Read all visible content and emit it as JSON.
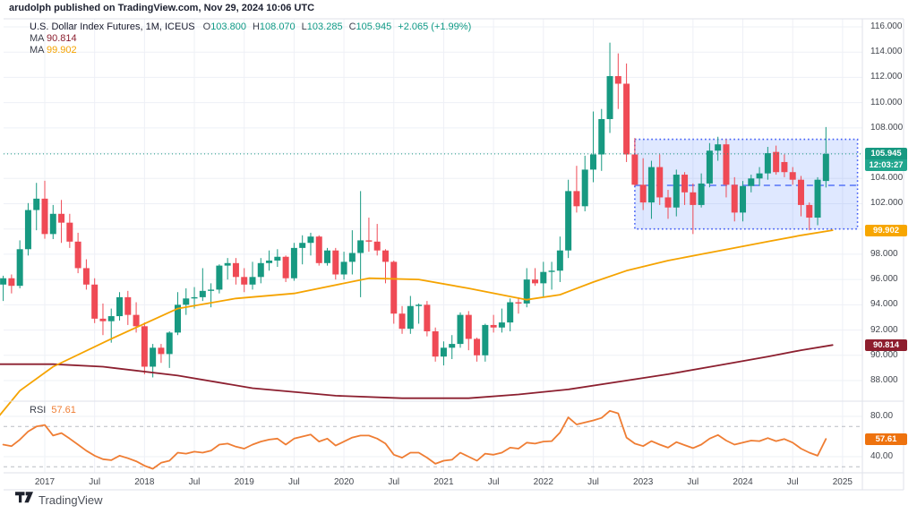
{
  "attribution": "arudolph published on TradingView.com, Nov 29, 2024 10:06 UTC",
  "legend": {
    "title": "U.S. Dollar Index Futures, 1M, ICEUS",
    "ohlc": {
      "o_label": "O",
      "o": "103.800",
      "h_label": "H",
      "h": "108.070",
      "l_label": "L",
      "l": "103.285",
      "c_label": "C",
      "c": "105.945",
      "change": "+2.065 (+1.99%)"
    },
    "ma1": {
      "label": "MA",
      "value": "90.814"
    },
    "ma2": {
      "label": "MA",
      "value": "99.902"
    }
  },
  "rsi_pane": {
    "label": "RSI",
    "value": "57.61"
  },
  "badges": {
    "last_price": "105.945",
    "countdown": "12:03:27",
    "ma_orange": "99.902",
    "ma_maroon": "90.814",
    "rsi": "57.61"
  },
  "footer": {
    "logo_text": "TradingView"
  },
  "chart_data": {
    "type": "candlestick",
    "title": "U.S. Dollar Index Futures, 1M, ICEUS",
    "interval": "1M",
    "start_month": "2016-08",
    "end_month": "2024-11",
    "last_price": 105.945,
    "colors": {
      "up": "#179981",
      "down": "#ef4a55",
      "ma_orange": "#f5a300",
      "ma_maroon": "#8c1f2f",
      "rsi": "#ef7d33",
      "box_fill": "#2962ff",
      "box_border": "#3f5bf6",
      "box_mid": "#5674f8",
      "grid": "#eef0f6",
      "frame": "#dfe2ea",
      "rsi_band": "#b2b5bd"
    },
    "candles": [
      [
        95.6,
        96.3,
        94.3,
        96.1
      ],
      [
        96.1,
        96.4,
        94.9,
        95.5
      ],
      [
        95.5,
        99.1,
        95.3,
        98.4
      ],
      [
        98.4,
        102.05,
        97.9,
        101.5
      ],
      [
        101.5,
        103.65,
        99.9,
        102.4
      ],
      [
        102.4,
        103.82,
        99.23,
        99.6
      ],
      [
        99.6,
        101.9,
        99.2,
        101.2
      ],
      [
        101.2,
        102.3,
        98.9,
        100.5
      ],
      [
        100.5,
        101.2,
        98.5,
        99.0
      ],
      [
        99.0,
        99.7,
        96.5,
        96.9
      ],
      [
        96.9,
        97.6,
        95.2,
        95.6
      ],
      [
        95.6,
        96.1,
        92.55,
        92.9
      ],
      [
        92.9,
        94.1,
        91.6,
        92.7
      ],
      [
        92.7,
        93.7,
        91.0,
        93.1
      ],
      [
        93.1,
        95.0,
        92.75,
        94.6
      ],
      [
        94.6,
        95.1,
        92.4,
        93.2
      ],
      [
        93.2,
        94.2,
        91.8,
        92.3
      ],
      [
        92.3,
        92.6,
        88.5,
        89.1
      ],
      [
        89.1,
        90.9,
        88.25,
        90.6
      ],
      [
        90.6,
        90.9,
        89.4,
        90.1
      ],
      [
        90.1,
        91.9,
        89.0,
        91.8
      ],
      [
        91.8,
        95.0,
        91.6,
        94.0
      ],
      [
        94.0,
        95.3,
        93.2,
        94.5
      ],
      [
        94.5,
        95.4,
        93.7,
        94.6
      ],
      [
        94.6,
        96.9,
        94.3,
        95.1
      ],
      [
        95.1,
        95.7,
        93.8,
        95.2
      ],
      [
        95.2,
        97.2,
        94.9,
        97.1
      ],
      [
        97.1,
        97.7,
        96.0,
        97.3
      ],
      [
        97.3,
        97.7,
        95.6,
        96.2
      ],
      [
        96.2,
        96.9,
        95.0,
        95.6
      ],
      [
        95.6,
        97.4,
        95.2,
        96.2
      ],
      [
        96.2,
        97.7,
        95.7,
        97.3
      ],
      [
        97.3,
        98.3,
        96.7,
        97.5
      ],
      [
        97.5,
        98.4,
        97.0,
        97.8
      ],
      [
        97.8,
        97.9,
        95.8,
        96.1
      ],
      [
        96.1,
        98.9,
        95.9,
        98.5
      ],
      [
        98.5,
        99.5,
        97.2,
        98.9
      ],
      [
        98.9,
        99.7,
        97.9,
        99.4
      ],
      [
        99.4,
        99.5,
        97.1,
        97.3
      ],
      [
        97.3,
        98.5,
        97.1,
        98.3
      ],
      [
        98.3,
        98.5,
        96.0,
        96.4
      ],
      [
        96.4,
        98.2,
        96.0,
        97.4
      ],
      [
        97.4,
        99.9,
        96.4,
        98.1
      ],
      [
        98.1,
        103.0,
        94.6,
        99.1
      ],
      [
        99.1,
        100.9,
        98.2,
        99.0
      ],
      [
        99.0,
        100.4,
        97.9,
        98.3
      ],
      [
        98.3,
        98.4,
        95.7,
        97.4
      ],
      [
        97.4,
        97.5,
        92.5,
        93.3
      ],
      [
        93.3,
        93.9,
        91.7,
        92.1
      ],
      [
        92.1,
        94.7,
        91.7,
        93.9
      ],
      [
        93.9,
        94.1,
        92.5,
        94.0
      ],
      [
        94.0,
        94.3,
        91.5,
        91.9
      ],
      [
        91.9,
        92.2,
        89.5,
        89.9
      ],
      [
        89.9,
        91.1,
        89.2,
        90.6
      ],
      [
        90.6,
        91.6,
        89.7,
        90.9
      ],
      [
        90.9,
        93.4,
        90.6,
        93.2
      ],
      [
        93.2,
        93.5,
        90.4,
        91.3
      ],
      [
        91.3,
        91.4,
        89.5,
        90.0
      ],
      [
        90.0,
        92.5,
        89.5,
        92.4
      ],
      [
        92.4,
        93.2,
        91.8,
        92.2
      ],
      [
        92.2,
        93.7,
        91.8,
        92.6
      ],
      [
        92.6,
        94.5,
        91.9,
        94.2
      ],
      [
        94.2,
        94.6,
        93.3,
        94.1
      ],
      [
        94.1,
        96.9,
        93.8,
        96.0
      ],
      [
        96.0,
        96.9,
        95.5,
        95.7
      ],
      [
        95.7,
        97.4,
        94.6,
        96.6
      ],
      [
        96.6,
        97.4,
        95.2,
        96.7
      ],
      [
        96.7,
        99.4,
        95.8,
        98.3
      ],
      [
        98.3,
        103.9,
        97.7,
        103.0
      ],
      [
        103.0,
        105.0,
        101.3,
        101.8
      ],
      [
        101.8,
        105.8,
        101.4,
        104.7
      ],
      [
        104.7,
        109.3,
        103.7,
        105.9
      ],
      [
        105.9,
        109.5,
        104.6,
        108.7
      ],
      [
        108.7,
        114.75,
        107.6,
        112.1
      ],
      [
        112.1,
        113.9,
        109.5,
        111.5
      ],
      [
        111.5,
        113.1,
        105.3,
        105.9
      ],
      [
        105.9,
        107.2,
        103.4,
        103.5
      ],
      [
        103.5,
        105.6,
        101.5,
        102.1
      ],
      [
        102.1,
        105.4,
        100.8,
        104.9
      ],
      [
        104.9,
        105.9,
        101.9,
        102.5
      ],
      [
        102.5,
        103.1,
        100.8,
        101.7
      ],
      [
        101.7,
        104.7,
        101.0,
        104.3
      ],
      [
        104.3,
        104.5,
        101.9,
        102.9
      ],
      [
        102.9,
        103.6,
        99.6,
        101.9
      ],
      [
        101.9,
        104.4,
        101.7,
        103.6
      ],
      [
        103.6,
        106.8,
        103.3,
        106.2
      ],
      [
        106.2,
        107.3,
        105.4,
        106.7
      ],
      [
        106.7,
        107.1,
        102.5,
        103.5
      ],
      [
        103.5,
        104.1,
        100.6,
        101.3
      ],
      [
        101.3,
        103.8,
        100.6,
        103.4
      ],
      [
        103.4,
        104.3,
        102.9,
        104.0
      ],
      [
        104.0,
        104.9,
        103.4,
        104.4
      ],
      [
        104.4,
        106.5,
        103.9,
        106.0
      ],
      [
        106.1,
        106.6,
        104.3,
        104.5
      ],
      [
        105.3,
        105.9,
        104.1,
        104.5
      ],
      [
        104.5,
        104.9,
        103.5,
        103.9
      ],
      [
        103.9,
        104.2,
        101.0,
        101.9
      ],
      [
        101.9,
        102.1,
        99.9,
        100.9
      ],
      [
        100.9,
        104.1,
        100.3,
        103.9
      ],
      [
        103.8,
        108.07,
        103.285,
        105.945
      ]
    ],
    "rsi": [
      52,
      50.5,
      57,
      65,
      70,
      71.5,
      61,
      63.5,
      58,
      52,
      46,
      41,
      37.5,
      36.5,
      41,
      38.5,
      35.5,
      31,
      28,
      34,
      36,
      44,
      43,
      45,
      44,
      46,
      52,
      53,
      50,
      48,
      52,
      55,
      57,
      58,
      52,
      58,
      60,
      62,
      55,
      58,
      51,
      55,
      59,
      61,
      61,
      58,
      53,
      42,
      39,
      44,
      44,
      39,
      33,
      36,
      37,
      44,
      40,
      36,
      43,
      42,
      44,
      49,
      48,
      54,
      53,
      55,
      55.5,
      64,
      79,
      72,
      74,
      76,
      78.5,
      85.5,
      83,
      59,
      53,
      50.5,
      55.5,
      52,
      49,
      54.5,
      51.5,
      48.5,
      52,
      58,
      61.5,
      56,
      52,
      54,
      56,
      55.5,
      58.5,
      55.5,
      57.5,
      54,
      48,
      44,
      41,
      57.61
    ],
    "ma_orange": [
      [
        -0.5,
        85.2
      ],
      [
        2,
        87.2
      ],
      [
        6,
        89.1
      ],
      [
        13,
        91.3
      ],
      [
        21,
        93.7
      ],
      [
        28,
        94.5
      ],
      [
        35,
        94.9
      ],
      [
        44,
        96.1
      ],
      [
        50,
        96.0
      ],
      [
        56,
        95.3
      ],
      [
        63,
        94.4
      ],
      [
        67,
        94.8
      ],
      [
        71,
        95.8
      ],
      [
        75,
        96.7
      ],
      [
        80,
        97.5
      ],
      [
        84,
        98.0
      ],
      [
        88,
        98.5
      ],
      [
        92,
        99.0
      ],
      [
        96,
        99.5
      ],
      [
        99.8,
        99.902
      ]
    ],
    "ma_maroon": [
      [
        -0.5,
        89.3
      ],
      [
        6,
        89.3
      ],
      [
        12,
        89.1
      ],
      [
        21,
        88.4
      ],
      [
        30,
        87.4
      ],
      [
        40,
        86.8
      ],
      [
        48,
        86.6
      ],
      [
        56,
        86.6
      ],
      [
        62,
        86.9
      ],
      [
        68,
        87.3
      ],
      [
        74,
        87.9
      ],
      [
        80,
        88.5
      ],
      [
        86,
        89.2
      ],
      [
        92,
        89.9
      ],
      [
        96,
        90.4
      ],
      [
        99.8,
        90.814
      ]
    ],
    "range_box": {
      "start_index": 76.0,
      "end_index": 102.8,
      "price_top": 107.1,
      "price_bottom": 100.0,
      "mid_price": 103.45
    },
    "price_axis": {
      "min": 88,
      "max": 116,
      "ticks": [
        116,
        114,
        112,
        110,
        108,
        104,
        102,
        98,
        96,
        94,
        92,
        90,
        88
      ],
      "grid": [
        116,
        114,
        112,
        110,
        108,
        106,
        104,
        102,
        100,
        98,
        96,
        94,
        92,
        90,
        88
      ]
    },
    "rsi_axis": {
      "ticks": [
        80,
        40
      ],
      "dashed": [
        70,
        30
      ]
    },
    "time_axis": [
      {
        "i": 5,
        "label": "2017"
      },
      {
        "i": 11,
        "label": "Jul"
      },
      {
        "i": 17,
        "label": "2018"
      },
      {
        "i": 23,
        "label": "Jul"
      },
      {
        "i": 29,
        "label": "2019"
      },
      {
        "i": 35,
        "label": "Jul"
      },
      {
        "i": 41,
        "label": "2020"
      },
      {
        "i": 47,
        "label": "Jul"
      },
      {
        "i": 53,
        "label": "2021"
      },
      {
        "i": 59,
        "label": "Jul"
      },
      {
        "i": 65,
        "label": "2022"
      },
      {
        "i": 71,
        "label": "Jul"
      },
      {
        "i": 77,
        "label": "2023"
      },
      {
        "i": 83,
        "label": "Jul"
      },
      {
        "i": 89,
        "label": "2024"
      },
      {
        "i": 95,
        "label": "Jul"
      },
      {
        "i": 101,
        "label": "2025"
      }
    ]
  }
}
